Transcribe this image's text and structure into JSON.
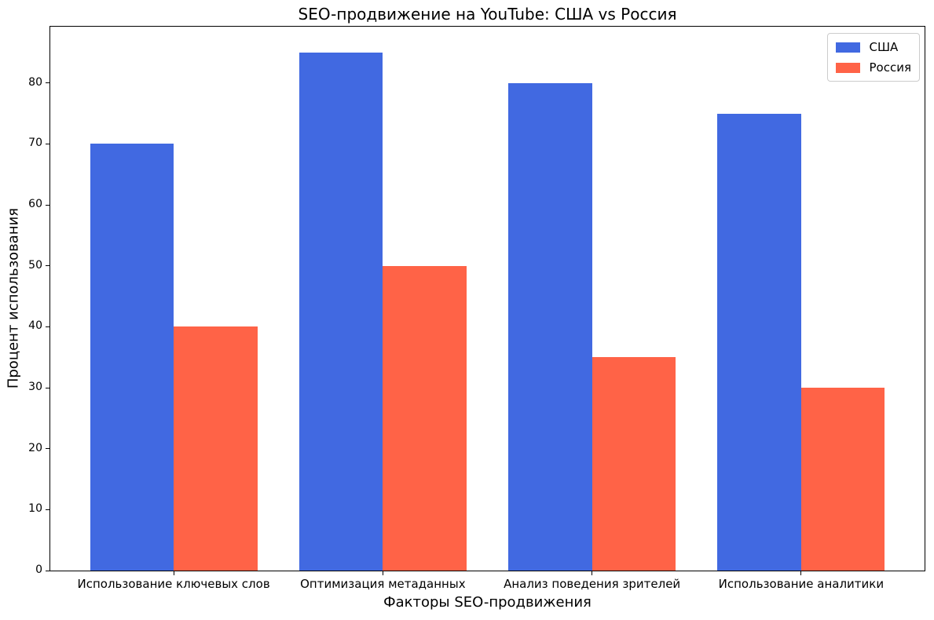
{
  "chart_data": {
    "type": "bar",
    "title": "SEO-продвижение на YouTube: США vs Россия",
    "xlabel": "Факторы SEO-продвижения",
    "ylabel": "Процент использования",
    "categories": [
      "Использование ключевых слов",
      "Оптимизация метаданных",
      "Анализ поведения зрителей",
      "Использование аналитики"
    ],
    "series": [
      {
        "name": "США",
        "color": "#4169E1",
        "values": [
          70,
          85,
          80,
          75
        ]
      },
      {
        "name": "Россия",
        "color": "#FF6347",
        "values": [
          40,
          50,
          35,
          30
        ]
      }
    ],
    "yticks": [
      0,
      10,
      20,
      30,
      40,
      50,
      60,
      70,
      80
    ],
    "ylim": [
      0,
      89.25
    ],
    "bar_width_fraction": 0.4,
    "grid": false,
    "legend_position": "upper right",
    "background_color": "#ffffff",
    "frame_color": "#000000"
  }
}
